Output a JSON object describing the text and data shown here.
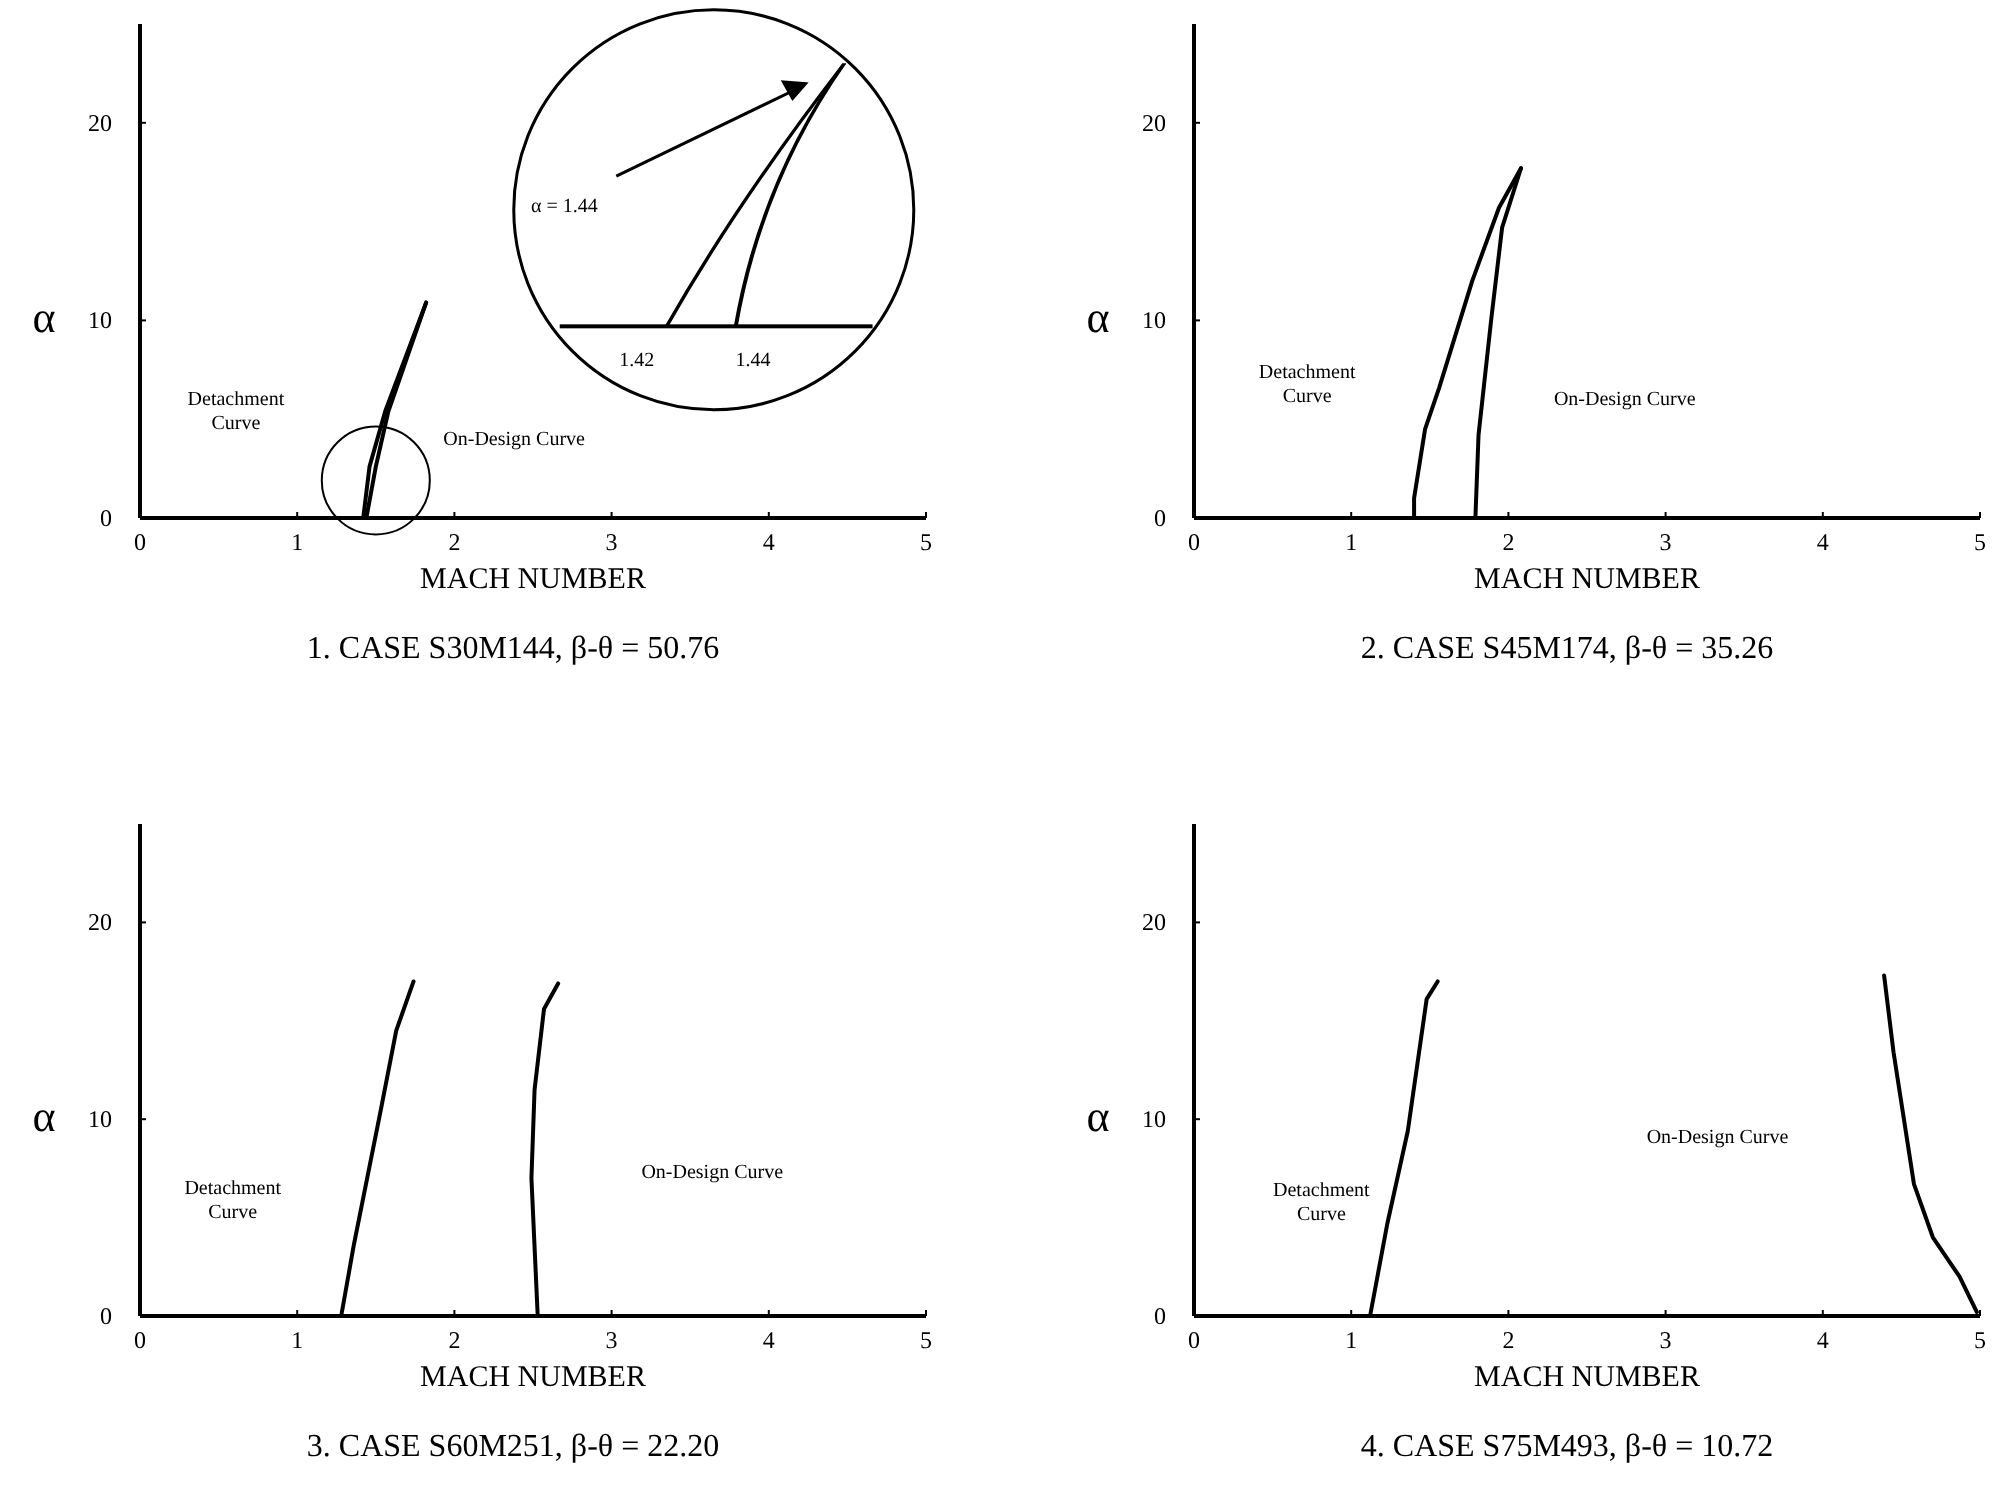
{
  "chart_data": [
    {
      "type": "line",
      "title": "1. CASE S30M144, β-θ = 50.76",
      "xlabel": "MACH NUMBER",
      "ylabel": "α",
      "xlim": [
        0,
        5
      ],
      "ylim": [
        0,
        25
      ],
      "xticks": [
        0,
        1,
        2,
        3,
        4,
        5
      ],
      "yticks": [
        0,
        10,
        20
      ],
      "grid": false,
      "marker": "none",
      "line_style": "solid",
      "series": [
        {
          "color": "#000000",
          "x": [
            1.42,
            1.46,
            1.56,
            1.82
          ],
          "values": [
            0,
            2.6,
            5.4,
            10.9
          ]
        },
        {
          "color": "#000000",
          "x": [
            1.44,
            1.5,
            1.58,
            1.82
          ],
          "values": [
            0,
            2.6,
            5.4,
            10.9
          ]
        }
      ],
      "annotations": [
        "Detachment\nCurve",
        "On-Design Curve",
        "α = 1.44",
        "1.42",
        "1.44"
      ]
    },
    {
      "type": "line",
      "title": "2. CASE S45M174, β-θ = 35.26",
      "xlabel": "MACH NUMBER",
      "ylabel": "α",
      "xlim": [
        0,
        5
      ],
      "ylim": [
        0,
        25
      ],
      "xticks": [
        0,
        1,
        2,
        3,
        4,
        5
      ],
      "yticks": [
        0,
        10,
        20
      ],
      "grid": false,
      "marker": "none",
      "line_style": "solid",
      "series": [
        {
          "color": "#000000",
          "x": [
            1.4,
            1.4,
            1.47,
            1.56,
            1.77,
            1.94,
            2.08
          ],
          "values": [
            0,
            1,
            4.5,
            6.6,
            12,
            15.7,
            17.7
          ]
        },
        {
          "color": "#000000",
          "x": [
            1.79,
            1.81,
            1.89,
            1.96,
            2.08
          ],
          "values": [
            0,
            4.2,
            10,
            14.7,
            17.7
          ]
        }
      ],
      "annotations": [
        "Detachment\nCurve",
        "On-Design Curve"
      ]
    },
    {
      "type": "line",
      "title": "3. CASE S60M251, β-θ = 22.20",
      "xlabel": "MACH NUMBER",
      "ylabel": "α",
      "xlim": [
        0,
        5
      ],
      "ylim": [
        0,
        25
      ],
      "xticks": [
        0,
        1,
        2,
        3,
        4,
        5
      ],
      "yticks": [
        0,
        10,
        20
      ],
      "grid": false,
      "marker": "none",
      "line_style": "solid",
      "series": [
        {
          "color": "#000000",
          "x": [
            1.28,
            1.36,
            1.53,
            1.63,
            1.74
          ],
          "values": [
            0,
            3.6,
            10.4,
            14.5,
            17
          ]
        },
        {
          "color": "#000000",
          "x": [
            2.53,
            2.49,
            2.51,
            2.57,
            2.66
          ],
          "values": [
            0,
            7,
            11.5,
            15.6,
            16.9
          ]
        }
      ],
      "annotations": [
        "Detachment\nCurve",
        "On-Design Curve"
      ]
    },
    {
      "type": "line",
      "title": "4. CASE S75M493, β-θ = 10.72",
      "xlabel": "MACH NUMBER",
      "ylabel": "α",
      "xlim": [
        0,
        5
      ],
      "ylim": [
        0,
        25
      ],
      "xticks": [
        0,
        1,
        2,
        3,
        4,
        5
      ],
      "yticks": [
        0,
        10,
        20
      ],
      "grid": false,
      "marker": "none",
      "line_style": "solid",
      "series": [
        {
          "color": "#000000",
          "x": [
            1.12,
            1.23,
            1.36,
            1.48,
            1.55
          ],
          "values": [
            0,
            4.7,
            9.4,
            16.1,
            17
          ]
        },
        {
          "color": "#000000",
          "x": [
            4.39,
            4.45,
            4.58,
            4.7,
            4.87,
            4.98
          ],
          "values": [
            17.3,
            13.4,
            6.7,
            4,
            2,
            0.2
          ]
        }
      ],
      "annotations": [
        "Detachment\nCurve",
        "On-Design Curve"
      ]
    }
  ]
}
